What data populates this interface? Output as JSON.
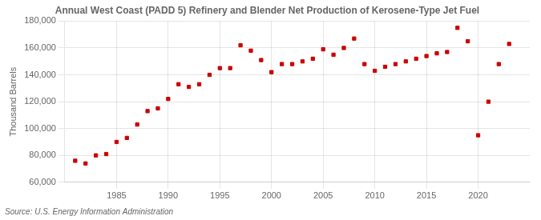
{
  "chart_data": {
    "type": "scatter",
    "title": "Annual West Coast (PADD 5) Refinery and Blender Net Production of Kerosene-Type Jet Fuel",
    "ylabel": "Thousand Barrels",
    "source": "Source: U.S. Energy Information Administration",
    "x": [
      1981,
      1982,
      1983,
      1984,
      1985,
      1986,
      1987,
      1988,
      1989,
      1990,
      1991,
      1992,
      1993,
      1994,
      1995,
      1996,
      1997,
      1998,
      1999,
      2000,
      2001,
      2002,
      2003,
      2004,
      2005,
      2006,
      2007,
      2008,
      2009,
      2010,
      2011,
      2012,
      2013,
      2014,
      2015,
      2016,
      2017,
      2018,
      2019,
      2020,
      2021,
      2022,
      2023
    ],
    "values": [
      76000,
      74000,
      80000,
      81000,
      90000,
      93000,
      103000,
      113000,
      115000,
      122000,
      133000,
      131000,
      133000,
      140000,
      145000,
      145000,
      162000,
      158000,
      151000,
      142000,
      148000,
      148000,
      150000,
      152000,
      159000,
      155000,
      160000,
      167000,
      148000,
      143000,
      146000,
      148000,
      150000,
      152000,
      154000,
      156000,
      157000,
      175000,
      165000,
      95000,
      120000,
      148000,
      163000
    ],
    "color": "#cc0000",
    "marker": "square",
    "xlim": [
      1980,
      2025
    ],
    "xticks": [
      1985,
      1990,
      1995,
      2000,
      2005,
      2010,
      2015,
      2020
    ],
    "ylim": [
      60000,
      180000
    ],
    "yticks": [
      {
        "value": 60000,
        "label": "60,000"
      },
      {
        "value": 80000,
        "label": "80,000"
      },
      {
        "value": 100000,
        "label": "100,000"
      },
      {
        "value": 120000,
        "label": "120,000"
      },
      {
        "value": 140000,
        "label": "140,000"
      },
      {
        "value": 160000,
        "label": "160,000"
      },
      {
        "value": 180000,
        "label": "180,000"
      }
    ],
    "grid": true
  }
}
